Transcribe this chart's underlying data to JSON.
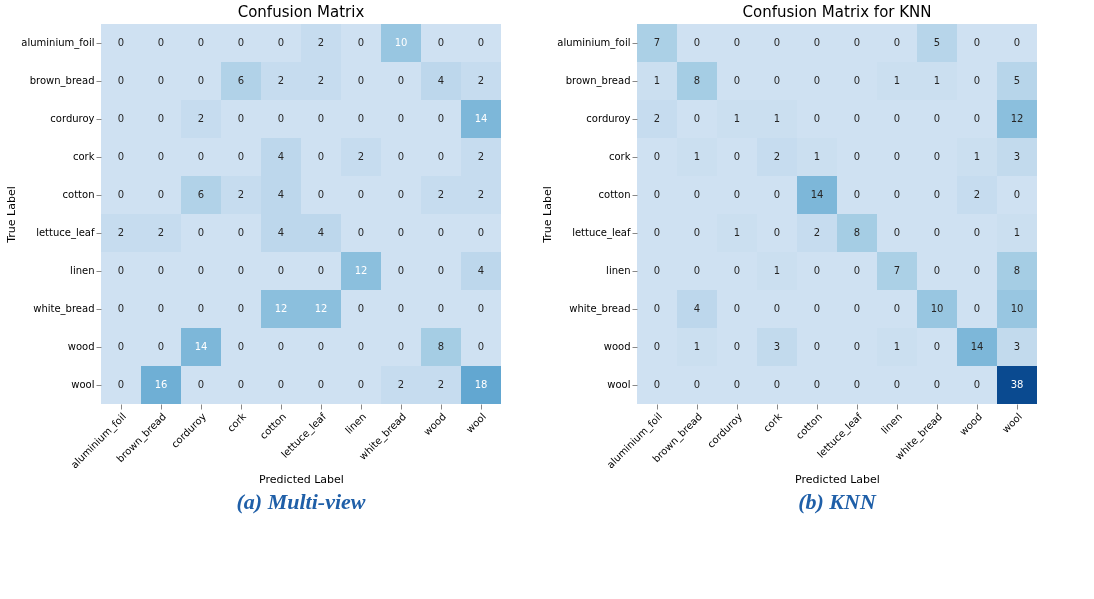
{
  "chart_data": [
    {
      "type": "heatmap",
      "title": "Confusion Matrix",
      "xlabel": "Predicted Label",
      "ylabel": "True Label",
      "annotations": [
        "(a) Multi-view"
      ],
      "data_labels": true,
      "grid": false,
      "legend": false,
      "categories": [
        "aluminium_foil",
        "brown_bread",
        "corduroy",
        "cork",
        "cotton",
        "lettuce_leaf",
        "linen",
        "white_bread",
        "wood",
        "wool"
      ],
      "y_categories": [
        "aluminium_foil",
        "brown_bread",
        "corduroy",
        "cork",
        "cotton",
        "lettuce_leaf",
        "linen",
        "white_bread",
        "wood",
        "wool"
      ],
      "cells": [
        [
          0,
          0,
          0,
          0,
          0,
          2,
          0,
          10,
          0,
          0
        ],
        [
          0,
          0,
          0,
          6,
          2,
          2,
          0,
          0,
          4,
          2
        ],
        [
          0,
          0,
          2,
          0,
          0,
          0,
          0,
          0,
          0,
          14
        ],
        [
          0,
          0,
          0,
          0,
          4,
          0,
          2,
          0,
          0,
          2
        ],
        [
          0,
          0,
          6,
          2,
          4,
          0,
          0,
          0,
          2,
          2
        ],
        [
          2,
          2,
          0,
          0,
          4,
          4,
          0,
          0,
          0,
          0
        ],
        [
          0,
          0,
          0,
          0,
          0,
          0,
          12,
          0,
          0,
          4
        ],
        [
          0,
          0,
          0,
          0,
          12,
          12,
          0,
          0,
          0,
          0
        ],
        [
          0,
          0,
          14,
          0,
          0,
          0,
          0,
          0,
          8,
          0
        ],
        [
          0,
          16,
          0,
          0,
          0,
          0,
          0,
          2,
          2,
          18
        ]
      ]
    },
    {
      "type": "heatmap",
      "title": "Confusion Matrix for KNN",
      "xlabel": "Predicted Label",
      "ylabel": "True Label",
      "annotations": [
        "(b) KNN"
      ],
      "data_labels": true,
      "grid": false,
      "legend": false,
      "categories": [
        "aluminium_foil",
        "brown_bread",
        "corduroy",
        "cork",
        "cotton",
        "lettuce_leaf",
        "linen",
        "white_bread",
        "wood",
        "wool"
      ],
      "y_categories": [
        "aluminium_foil",
        "brown_bread",
        "corduroy",
        "cork",
        "cotton",
        "lettuce_leaf",
        "linen",
        "white_bread",
        "wood",
        "wool"
      ],
      "cells": [
        [
          7,
          0,
          0,
          0,
          0,
          0,
          0,
          5,
          0,
          0
        ],
        [
          1,
          8,
          0,
          0,
          0,
          0,
          1,
          1,
          0,
          5
        ],
        [
          2,
          0,
          1,
          1,
          0,
          0,
          0,
          0,
          0,
          12
        ],
        [
          0,
          1,
          0,
          2,
          1,
          0,
          0,
          0,
          1,
          3
        ],
        [
          0,
          0,
          0,
          0,
          14,
          0,
          0,
          0,
          2,
          0
        ],
        [
          0,
          0,
          1,
          0,
          2,
          8,
          0,
          0,
          0,
          1
        ],
        [
          0,
          0,
          0,
          1,
          0,
          0,
          7,
          0,
          0,
          8
        ],
        [
          0,
          4,
          0,
          0,
          0,
          0,
          0,
          10,
          0,
          10
        ],
        [
          0,
          1,
          0,
          3,
          0,
          0,
          1,
          0,
          14,
          3
        ],
        [
          0,
          0,
          0,
          0,
          0,
          0,
          0,
          0,
          0,
          38
        ]
      ]
    }
  ]
}
